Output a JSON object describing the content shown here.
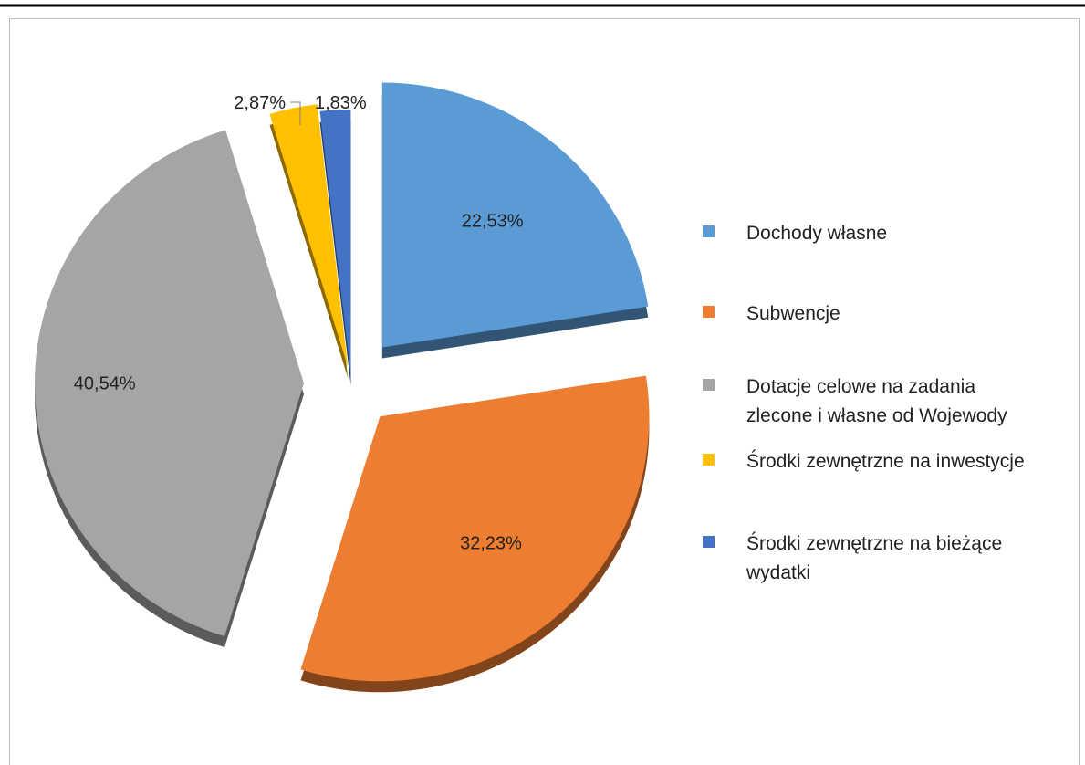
{
  "chart_data": {
    "type": "pie",
    "title": "",
    "legend_position": "right",
    "slices": [
      {
        "name": "Dochody własne",
        "value": 22.53,
        "label": "22,53%",
        "color": "#5b9bd5",
        "legend_lines": [
          "Dochody własne"
        ]
      },
      {
        "name": "Subwencje",
        "value": 32.23,
        "label": "32,23%",
        "color": "#ed7d31",
        "legend_lines": [
          "Subwencje"
        ]
      },
      {
        "name": "Dotacje celowe na zadania zlecone i własne od Wojewody",
        "value": 40.54,
        "label": "40,54%",
        "color": "#a5a5a5",
        "legend_lines": [
          "Dotacje celowe na zadania",
          "zlecone i własne od Wojewody"
        ]
      },
      {
        "name": "Środki zewnętrzne na inwestycje",
        "value": 2.87,
        "label": "2,87%",
        "color": "#ffc000",
        "legend_lines": [
          "Środki zewnętrzne na inwestycje"
        ]
      },
      {
        "name": "Środki zewnętrzne na bieżące wydatki",
        "value": 1.83,
        "label": "1,83%",
        "color": "#4472c4",
        "legend_lines": [
          "Środki zewnętrzne na bieżące",
          "wydatki"
        ]
      }
    ]
  }
}
